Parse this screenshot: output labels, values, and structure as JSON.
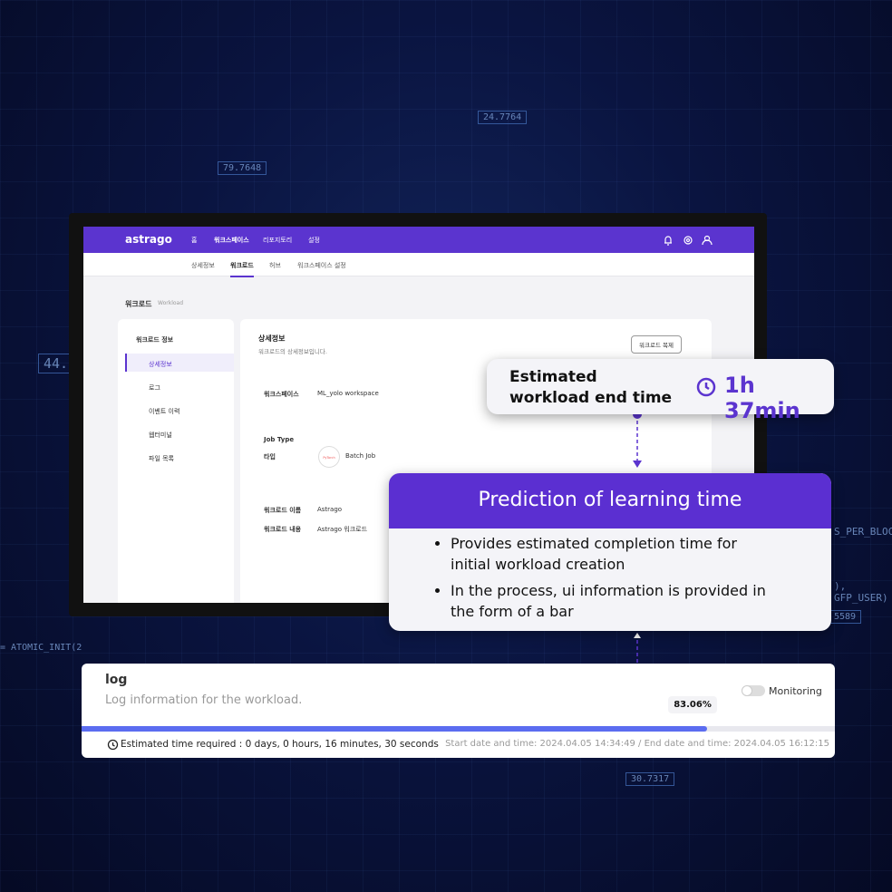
{
  "background_labels": [
    "24.7764",
    "79.7648",
    "30.7317",
    "44.",
    "5589",
    "= ATOMIC_INIT(2",
    "S_PER_BLOCK",
    "), GFP_USER)"
  ],
  "app": {
    "logo": "astrago",
    "nav": [
      "홈",
      "워크스페이스",
      "리포지토리",
      "설정"
    ],
    "tabs": [
      "상세정보",
      "워크로드",
      "허브",
      "워크스페이스 설정"
    ],
    "page_title": "워크로드",
    "page_subtitle": "Workload",
    "sidebar": {
      "title": "워크로드 정보",
      "items": [
        "상세정보",
        "로그",
        "이벤트 이력",
        "웹터미널",
        "파일 목록"
      ]
    },
    "detail": {
      "title": "상세정보",
      "description": "워크로드의 상세정보입니다.",
      "button": "워크로드 복제",
      "workspace_label": "워크스페이스",
      "workspace_value": "ML_yolo workspace",
      "job_type_label": "Job Type",
      "type_label": "타입",
      "framework": "PyTorch",
      "type_value": "Batch Job",
      "name_label": "워크로드 이름",
      "name_value": "Astrago",
      "content_label": "워크로드 내용",
      "content_value": "Astrago 워크로드"
    }
  },
  "estimate_card": {
    "label": "Estimated workload end time",
    "value": "1h 37min"
  },
  "prediction_card": {
    "title": "Prediction of learning time",
    "bullets": [
      "Provides estimated completion time for initial workload creation",
      "In the process, ui information is provided in the form of a bar"
    ]
  },
  "log": {
    "title": "log",
    "subtitle": "Log information for the workload.",
    "toggle_label": "Monitoring",
    "progress": {
      "value": 83.06,
      "value_label": "83.06%",
      "range": [
        0,
        100
      ]
    },
    "estimated_time": "Estimated time required : 0 days, 0 hours, 16 minutes, 30 seconds",
    "dates": "Start date and time: 2024.04.05 14:34:49 / End date and time: 2024.04.05 16:12:15"
  }
}
